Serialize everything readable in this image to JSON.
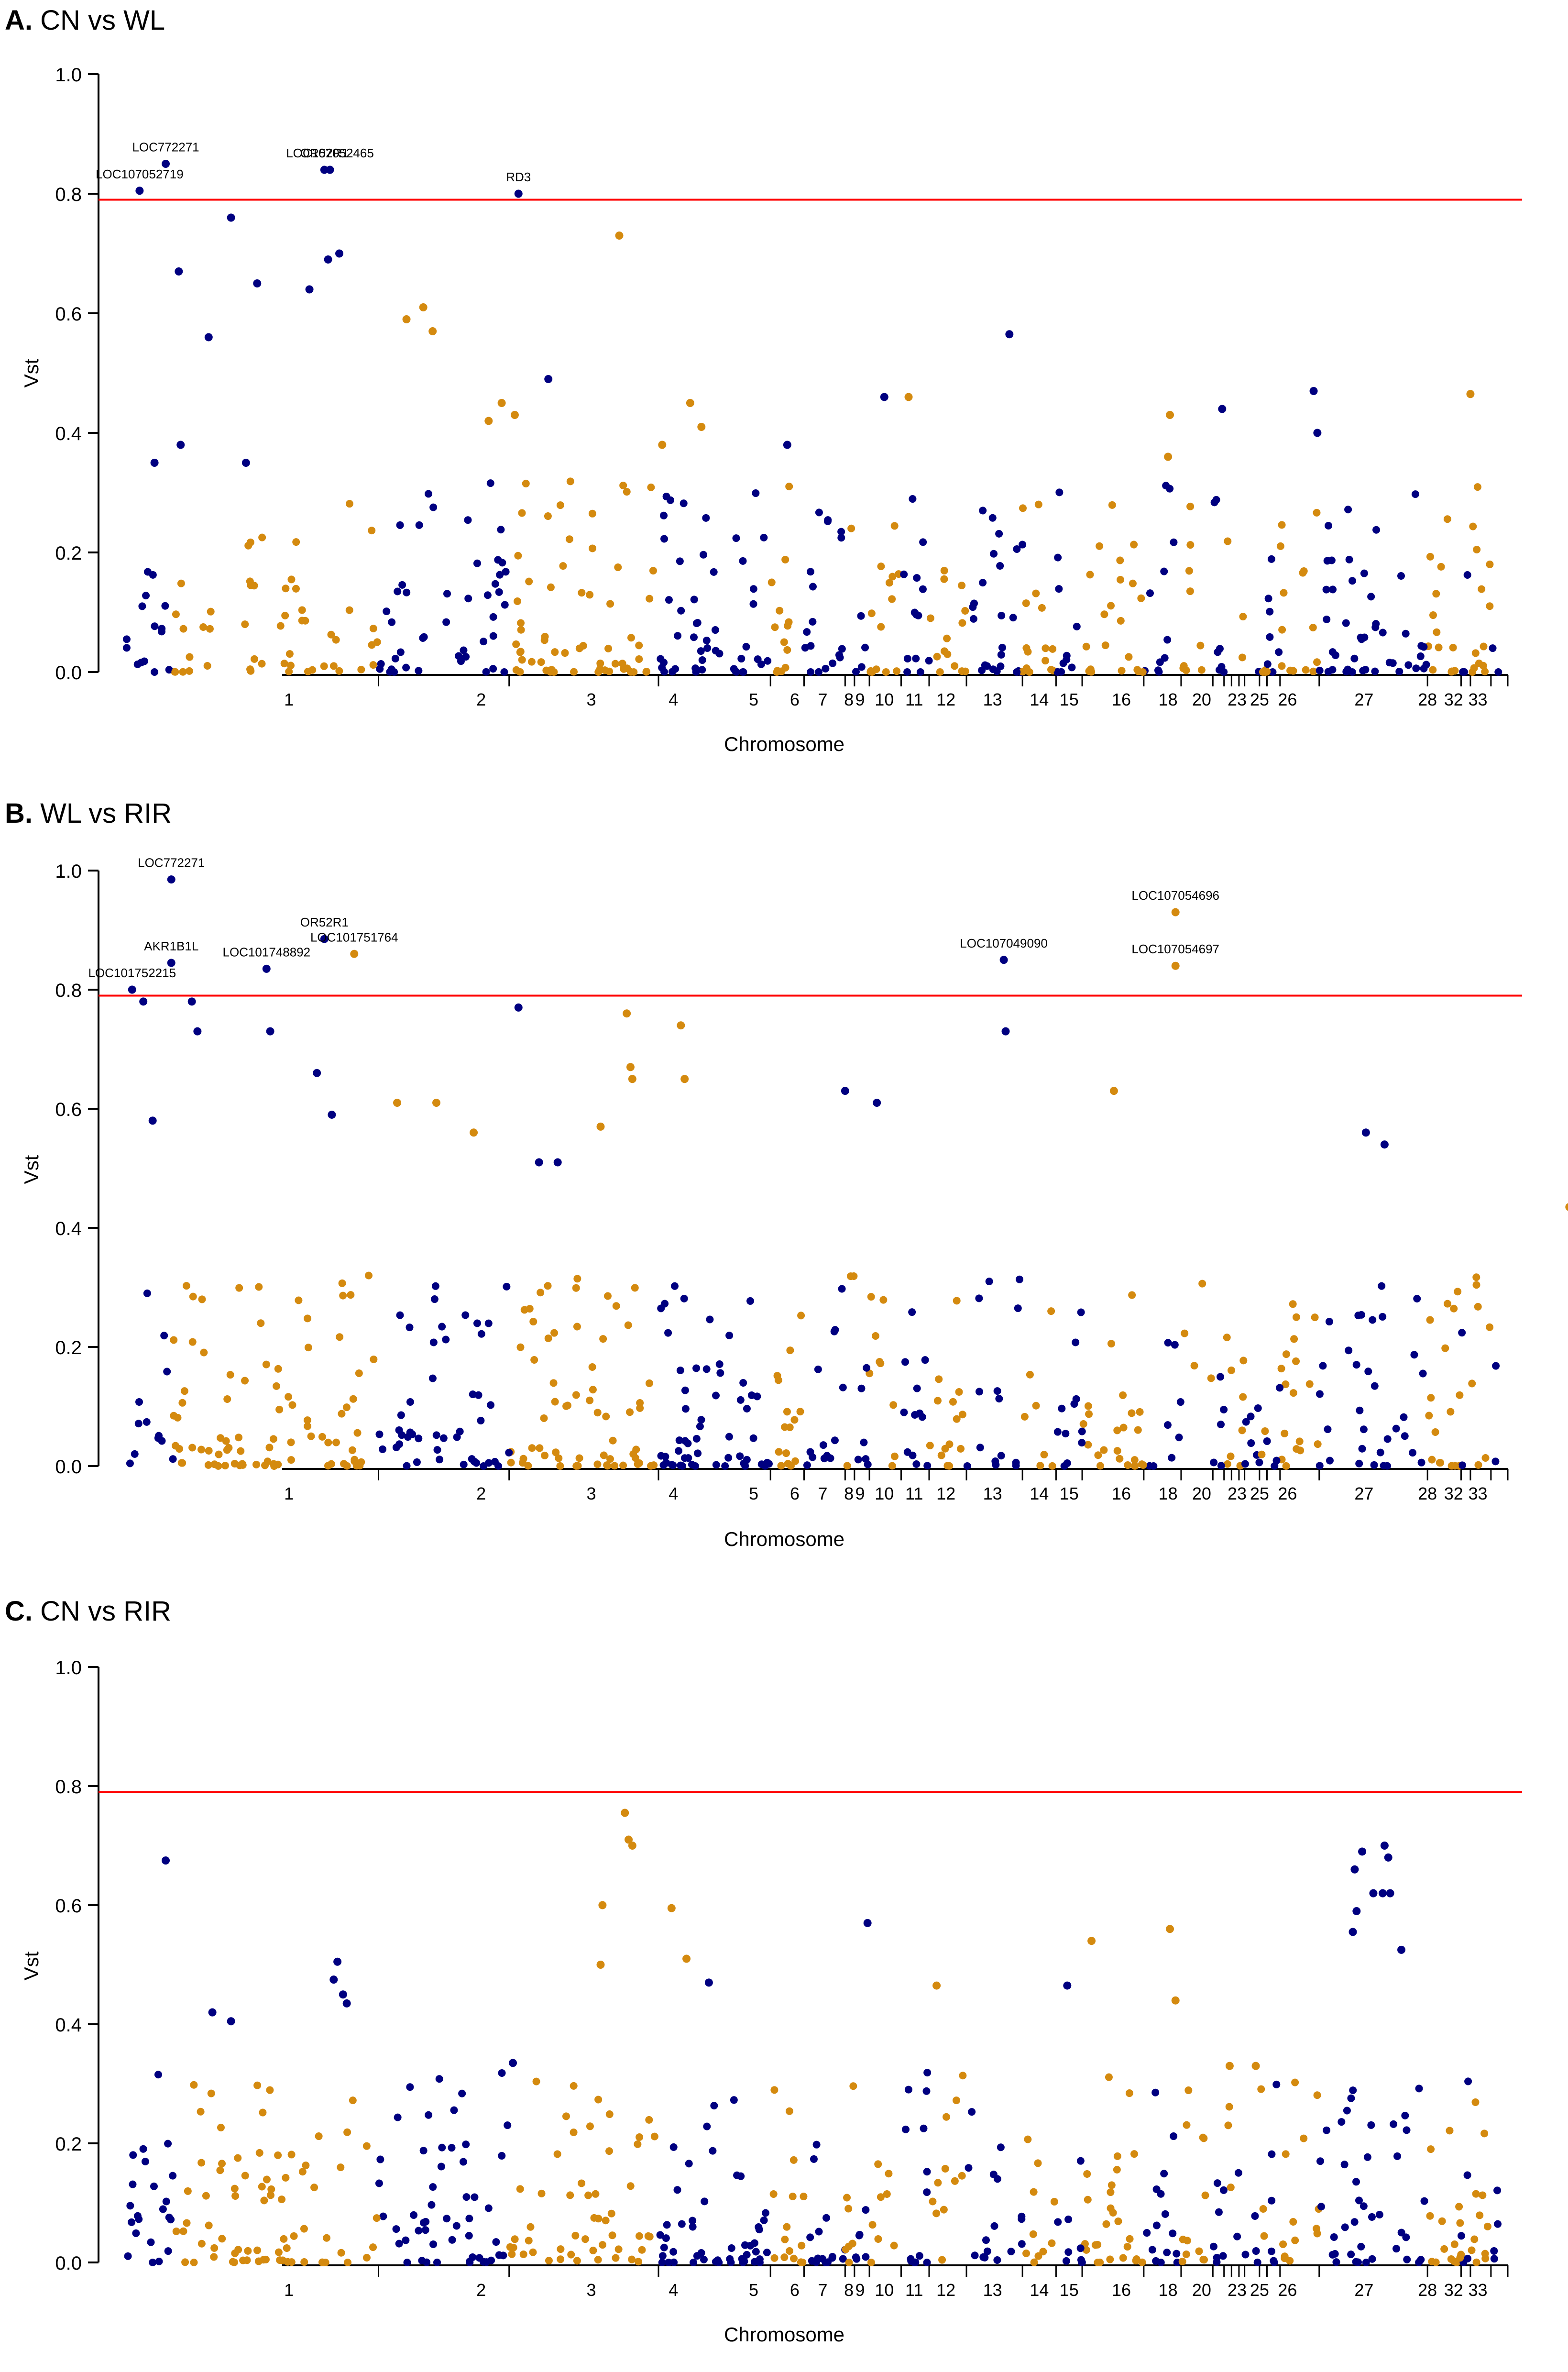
{
  "colors": {
    "blue": "#000080",
    "orange": "#D48A0F",
    "threshold": "#FF0000",
    "axis": "#000000"
  },
  "chart_data": [
    {
      "type": "scatter",
      "panel_label": "A.",
      "title": "CN vs WL",
      "xlabel": "Chromosome",
      "ylabel": "Vst",
      "ylim": [
        0,
        1.0
      ],
      "yticks": [
        "0.0",
        "0.2",
        "0.4",
        "0.6",
        "0.8",
        "1.0"
      ],
      "threshold": 0.79,
      "annotations": [
        {
          "label": "LOC772271",
          "x": 3.6,
          "y": 0.85
        },
        {
          "label": "LOC107052719",
          "x": 2.2,
          "y": 0.805
        },
        {
          "label": "OR52R1",
          "x": 12.1,
          "y": 0.84
        },
        {
          "label": "LOC107052465",
          "x": 12.4,
          "y": 0.84
        },
        {
          "label": "RD3",
          "x": 22.5,
          "y": 0.8
        }
      ],
      "highlight": [
        {
          "x": 3.6,
          "y": 0.85,
          "c": 0
        },
        {
          "x": 2.2,
          "y": 0.805,
          "c": 0
        },
        {
          "x": 12.1,
          "y": 0.84,
          "c": 0
        },
        {
          "x": 12.4,
          "y": 0.84,
          "c": 0
        },
        {
          "x": 22.5,
          "y": 0.8,
          "c": 0
        },
        {
          "x": 7.1,
          "y": 0.76,
          "c": 0
        },
        {
          "x": 27.9,
          "y": 0.73,
          "c": 1
        },
        {
          "x": 4.3,
          "y": 0.67,
          "c": 0
        },
        {
          "x": 8.5,
          "y": 0.65,
          "c": 0
        },
        {
          "x": 11.3,
          "y": 0.64,
          "c": 0
        },
        {
          "x": 12.3,
          "y": 0.69,
          "c": 0
        },
        {
          "x": 12.9,
          "y": 0.7,
          "c": 0
        },
        {
          "x": 16.5,
          "y": 0.59,
          "c": 1
        },
        {
          "x": 17.4,
          "y": 0.61,
          "c": 1
        },
        {
          "x": 17.9,
          "y": 0.57,
          "c": 1
        },
        {
          "x": 5.9,
          "y": 0.56,
          "c": 0
        },
        {
          "x": 48.8,
          "y": 0.565,
          "c": 0
        },
        {
          "x": 24.1,
          "y": 0.49,
          "c": 0
        },
        {
          "x": 22.3,
          "y": 0.43,
          "c": 1
        },
        {
          "x": 21.6,
          "y": 0.45,
          "c": 1
        },
        {
          "x": 20.9,
          "y": 0.42,
          "c": 1
        },
        {
          "x": 31.7,
          "y": 0.45,
          "c": 1
        },
        {
          "x": 32.3,
          "y": 0.41,
          "c": 1
        },
        {
          "x": 42.1,
          "y": 0.46,
          "c": 0
        },
        {
          "x": 43.4,
          "y": 0.46,
          "c": 1
        },
        {
          "x": 57.4,
          "y": 0.43,
          "c": 1
        },
        {
          "x": 60.2,
          "y": 0.44,
          "c": 0
        },
        {
          "x": 65.1,
          "y": 0.47,
          "c": 0
        },
        {
          "x": 65.3,
          "y": 0.4,
          "c": 0
        },
        {
          "x": 73.5,
          "y": 0.465,
          "c": 1
        },
        {
          "x": 4.4,
          "y": 0.38,
          "c": 0
        },
        {
          "x": 7.9,
          "y": 0.35,
          "c": 0
        },
        {
          "x": 3.0,
          "y": 0.35,
          "c": 0
        },
        {
          "x": 36.9,
          "y": 0.38,
          "c": 0
        },
        {
          "x": 30.2,
          "y": 0.38,
          "c": 1
        },
        {
          "x": 57.3,
          "y": 0.36,
          "c": 1
        }
      ],
      "background_points": 500
    },
    {
      "type": "scatter",
      "panel_label": "B.",
      "title": "WL vs RIR",
      "xlabel": "Chromosome",
      "ylabel": "Vst",
      "ylim": [
        0,
        1.0
      ],
      "yticks": [
        "0.0",
        "0.2",
        "0.4",
        "0.6",
        "0.8",
        "1.0"
      ],
      "threshold": 0.79,
      "annotations": [
        {
          "label": "LOC772271",
          "x": 3.9,
          "y": 0.985
        },
        {
          "label": "AKR1B1L",
          "x": 3.9,
          "y": 0.845
        },
        {
          "label": "LOC101752215",
          "x": 1.8,
          "y": 0.8
        },
        {
          "label": "LOC101748892",
          "x": 9.0,
          "y": 0.835
        },
        {
          "label": "OR52R1",
          "x": 12.1,
          "y": 0.885
        },
        {
          "label": "LOC101751764",
          "x": 13.7,
          "y": 0.86
        },
        {
          "label": "LOC107049090",
          "x": 48.5,
          "y": 0.85
        },
        {
          "label": "LOC107054696",
          "x": 57.7,
          "y": 0.93
        },
        {
          "label": "LOC107054697",
          "x": 57.7,
          "y": 0.84
        }
      ],
      "highlight": [
        {
          "x": 3.9,
          "y": 0.985,
          "c": 0
        },
        {
          "x": 3.9,
          "y": 0.845,
          "c": 0
        },
        {
          "x": 1.8,
          "y": 0.8,
          "c": 0
        },
        {
          "x": 9.0,
          "y": 0.835,
          "c": 0
        },
        {
          "x": 12.1,
          "y": 0.885,
          "c": 0
        },
        {
          "x": 13.7,
          "y": 0.86,
          "c": 1
        },
        {
          "x": 48.5,
          "y": 0.85,
          "c": 0
        },
        {
          "x": 57.7,
          "y": 0.93,
          "c": 1
        },
        {
          "x": 57.7,
          "y": 0.84,
          "c": 1
        },
        {
          "x": 22.5,
          "y": 0.77,
          "c": 0
        },
        {
          "x": 2.4,
          "y": 0.78,
          "c": 0
        },
        {
          "x": 5.0,
          "y": 0.78,
          "c": 0
        },
        {
          "x": 5.3,
          "y": 0.73,
          "c": 0
        },
        {
          "x": 9.2,
          "y": 0.73,
          "c": 0
        },
        {
          "x": 48.6,
          "y": 0.73,
          "c": 0
        },
        {
          "x": 28.3,
          "y": 0.76,
          "c": 1
        },
        {
          "x": 31.2,
          "y": 0.74,
          "c": 1
        },
        {
          "x": 28.5,
          "y": 0.67,
          "c": 1
        },
        {
          "x": 28.6,
          "y": 0.65,
          "c": 1
        },
        {
          "x": 31.4,
          "y": 0.65,
          "c": 1
        },
        {
          "x": 11.7,
          "y": 0.66,
          "c": 0
        },
        {
          "x": 40.0,
          "y": 0.63,
          "c": 0
        },
        {
          "x": 54.4,
          "y": 0.63,
          "c": 1
        },
        {
          "x": 16.0,
          "y": 0.61,
          "c": 1
        },
        {
          "x": 18.1,
          "y": 0.61,
          "c": 1
        },
        {
          "x": 2.9,
          "y": 0.58,
          "c": 0
        },
        {
          "x": 12.5,
          "y": 0.59,
          "c": 0
        },
        {
          "x": 67.9,
          "y": 0.56,
          "c": 0
        },
        {
          "x": 68.9,
          "y": 0.54,
          "c": 0
        },
        {
          "x": 41.7,
          "y": 0.61,
          "c": 0
        },
        {
          "x": 26.9,
          "y": 0.57,
          "c": 1
        },
        {
          "x": 20.1,
          "y": 0.56,
          "c": 1
        },
        {
          "x": 23.6,
          "y": 0.51,
          "c": 0
        },
        {
          "x": 24.6,
          "y": 0.51,
          "c": 0
        },
        {
          "x": 78.8,
          "y": 0.435,
          "c": 1
        }
      ],
      "background_points": 500
    },
    {
      "type": "scatter",
      "panel_label": "C.",
      "title": "CN vs RIR",
      "xlabel": "Chromosome",
      "ylabel": "Vst",
      "ylim": [
        0,
        1.0
      ],
      "yticks": [
        "0.0",
        "0.2",
        "0.4",
        "0.6",
        "0.8",
        "1.0"
      ],
      "threshold": 0.79,
      "annotations": [],
      "highlight": [
        {
          "x": 28.2,
          "y": 0.755,
          "c": 1
        },
        {
          "x": 28.4,
          "y": 0.71,
          "c": 1
        },
        {
          "x": 28.6,
          "y": 0.7,
          "c": 1
        },
        {
          "x": 27.0,
          "y": 0.6,
          "c": 1
        },
        {
          "x": 26.9,
          "y": 0.5,
          "c": 1
        },
        {
          "x": 3.6,
          "y": 0.675,
          "c": 0
        },
        {
          "x": 67.3,
          "y": 0.66,
          "c": 0
        },
        {
          "x": 67.7,
          "y": 0.69,
          "c": 0
        },
        {
          "x": 68.9,
          "y": 0.7,
          "c": 0
        },
        {
          "x": 69.1,
          "y": 0.68,
          "c": 0
        },
        {
          "x": 68.3,
          "y": 0.62,
          "c": 0
        },
        {
          "x": 68.8,
          "y": 0.62,
          "c": 0
        },
        {
          "x": 69.2,
          "y": 0.62,
          "c": 0
        },
        {
          "x": 67.4,
          "y": 0.59,
          "c": 0
        },
        {
          "x": 67.2,
          "y": 0.555,
          "c": 0
        },
        {
          "x": 69.8,
          "y": 0.525,
          "c": 0
        },
        {
          "x": 30.7,
          "y": 0.595,
          "c": 1
        },
        {
          "x": 41.2,
          "y": 0.57,
          "c": 0
        },
        {
          "x": 57.4,
          "y": 0.56,
          "c": 1
        },
        {
          "x": 53.2,
          "y": 0.54,
          "c": 1
        },
        {
          "x": 12.8,
          "y": 0.505,
          "c": 0
        },
        {
          "x": 12.6,
          "y": 0.475,
          "c": 0
        },
        {
          "x": 13.1,
          "y": 0.45,
          "c": 0
        },
        {
          "x": 13.3,
          "y": 0.435,
          "c": 0
        },
        {
          "x": 31.5,
          "y": 0.51,
          "c": 1
        },
        {
          "x": 32.7,
          "y": 0.47,
          "c": 0
        },
        {
          "x": 51.9,
          "y": 0.465,
          "c": 0
        },
        {
          "x": 44.9,
          "y": 0.465,
          "c": 1
        },
        {
          "x": 57.7,
          "y": 0.44,
          "c": 1
        },
        {
          "x": 6.1,
          "y": 0.42,
          "c": 0
        },
        {
          "x": 7.1,
          "y": 0.405,
          "c": 0
        },
        {
          "x": 22.2,
          "y": 0.335,
          "c": 0
        },
        {
          "x": 60.6,
          "y": 0.33,
          "c": 1
        },
        {
          "x": 62.0,
          "y": 0.33,
          "c": 1
        }
      ],
      "background_points": 520
    }
  ],
  "chromosomes": {
    "names": [
      "1",
      "2",
      "3",
      "4",
      "5",
      "6",
      "7",
      "8",
      "9",
      "10",
      "11",
      "12",
      "13",
      "14",
      "15",
      "16",
      "18",
      "20",
      "23",
      "25",
      "26",
      "27",
      "28",
      "32",
      "33"
    ],
    "centers": [
      10.2,
      20.5,
      26.4,
      30.8,
      35.1,
      37.3,
      38.8,
      40.2,
      40.8,
      42.1,
      43.7,
      45.4,
      47.9,
      50.4,
      52.0,
      54.8,
      57.3,
      59.1,
      61.0,
      62.2,
      63.7,
      67.8,
      71.2,
      72.6,
      73.9
    ],
    "boundaries": [
      0,
      4,
      15,
      22,
      30,
      36,
      37.8,
      40,
      40.5,
      41.3,
      43,
      44.5,
      46.5,
      49.5,
      51.3,
      52.7,
      56,
      58,
      59.7,
      60.3,
      60.7,
      61.1,
      61.4,
      62.2,
      62.6,
      63.3,
      65.4,
      71.2,
      73,
      73.5,
      74.6,
      75.5
    ]
  }
}
